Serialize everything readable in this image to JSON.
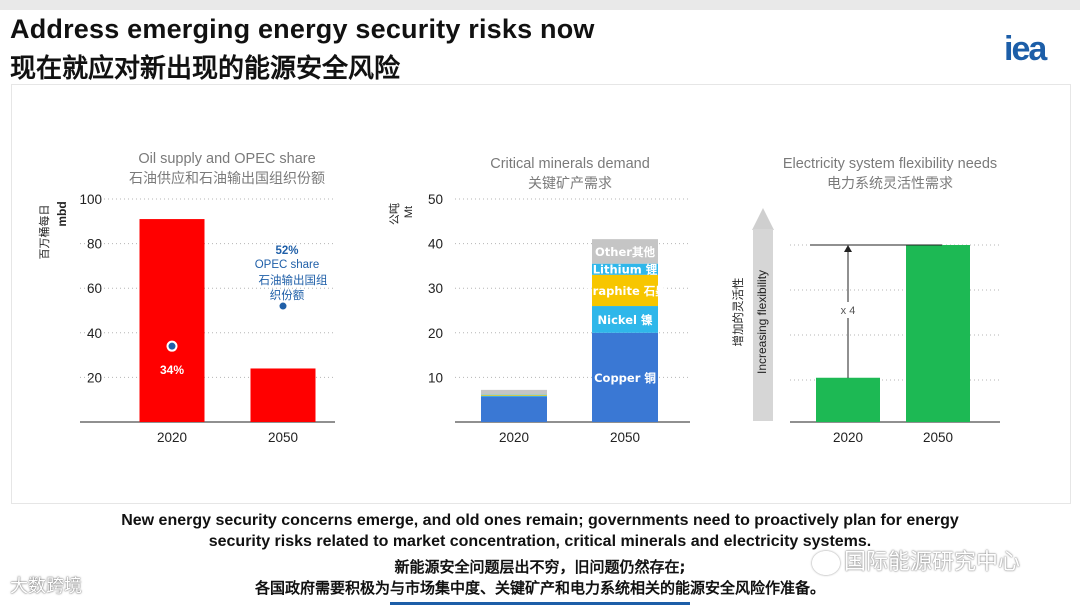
{
  "header": {
    "title_en": "Address emerging energy security risks now",
    "title_zh": "现在就应对新出现的能源安全风险",
    "logo": "iea"
  },
  "caption": {
    "en_line1": "New energy security concerns emerge, and old ones remain; governments need to proactively plan for energy",
    "en_line2": "security risks related to market concentration, critical minerals and electricity systems.",
    "zh_line1": "新能源安全问题层出不穷，旧问题仍然存在;",
    "zh_line2": "各国政府需要积极为与市场集中度、关键矿产和电力系统相关的能源安全风险作准备。"
  },
  "watermarks": {
    "right": "国际能源研究中心",
    "left": "大数跨境"
  },
  "colors": {
    "red": "#ff0000",
    "dark_blue": "#1f5fa8",
    "blue": "#3a78d4",
    "cyan": "#2fb7ea",
    "orange": "#f5a623",
    "gold": "#f7c600",
    "grey": "#c5c5c5",
    "green": "#1db954"
  },
  "chart_data": [
    {
      "type": "bar",
      "title": "Oil supply and OPEC share",
      "subtitle": "石油供应和石油输出国组织份额",
      "ylabel_zh": "百万桶每日",
      "ylabel": "mbd",
      "categories": [
        "2020",
        "2050"
      ],
      "values": [
        91,
        24
      ],
      "ylim": [
        0,
        100
      ],
      "yticks": [
        20,
        40,
        60,
        80,
        100
      ],
      "opec_share": [
        {
          "category": "2020",
          "value": 34,
          "label": "34%"
        },
        {
          "category": "2050",
          "value": 52,
          "label": "52%"
        }
      ],
      "annotation_en": "OPEC share",
      "annotation_zh1": "石油输出国组",
      "annotation_zh2": "织份额"
    },
    {
      "type": "bar",
      "stacked": true,
      "title": "Critical minerals demand",
      "subtitle": "关键矿产需求",
      "ylabel_zh": "公吨",
      "ylabel": "Mt",
      "categories": [
        "2020",
        "2050"
      ],
      "ylim": [
        0,
        50
      ],
      "yticks": [
        10,
        20,
        30,
        40,
        50
      ],
      "series": [
        {
          "name": "Copper 铜",
          "values": [
            5.7,
            20
          ],
          "color": "#3a78d4"
        },
        {
          "name": "Nickel 镍",
          "values": [
            0.2,
            6
          ],
          "color": "#2fb7ea"
        },
        {
          "name": "Graphite 石墨",
          "values": [
            0.2,
            7
          ],
          "color": "#f7c600"
        },
        {
          "name": "Lithium 锂",
          "values": [
            0.1,
            2.5
          ],
          "color": "#2fb7ea"
        },
        {
          "name": "Other其他",
          "values": [
            1.0,
            5.5
          ],
          "color": "#c5c5c5"
        }
      ]
    },
    {
      "type": "bar",
      "title": "Electricity system flexibility needs",
      "subtitle": "电力系统灵活性需求",
      "arrow_label_zh": "增加的灵活性",
      "arrow_label": "Increasing flexibility",
      "multiplier": "x 4",
      "categories": [
        "2020",
        "2050"
      ],
      "values": [
        1,
        4
      ]
    }
  ]
}
